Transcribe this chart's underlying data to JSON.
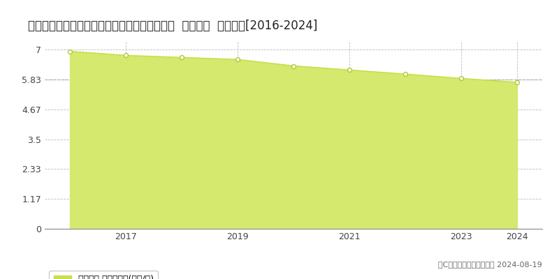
{
  "title": "栃木県栃木市西方町金崎字木ノ下２８８番１外  地価公示  地価推移[2016-2024]",
  "years": [
    2016,
    2017,
    2018,
    2019,
    2020,
    2021,
    2022,
    2023,
    2024
  ],
  "values": [
    6.93,
    6.77,
    6.69,
    6.61,
    6.36,
    6.2,
    6.04,
    5.87,
    5.72
  ],
  "yticks": [
    0,
    1.17,
    2.33,
    3.5,
    4.67,
    5.83,
    7
  ],
  "ylim": [
    0,
    7.3
  ],
  "xlim_start": 2015.55,
  "xlim_end": 2024.45,
  "line_color": "#c8e04a",
  "fill_color": "#d4e96e",
  "marker_facecolor": "#ffffff",
  "marker_edgecolor": "#b0c832",
  "bg_color": "#ffffff",
  "grid_color": "#aaaaaa",
  "legend_label": "地価公示 平均坪単価(万円/坪)",
  "legend_marker_color": "#c8e04a",
  "copyright_text": "（C）土地価格ドットコム 2024-08-19",
  "xticks": [
    2017,
    2019,
    2021,
    2023,
    2024
  ],
  "title_fontsize": 12,
  "axis_fontsize": 9,
  "dashed_line_value": 5.83,
  "spine_color": "#888888"
}
